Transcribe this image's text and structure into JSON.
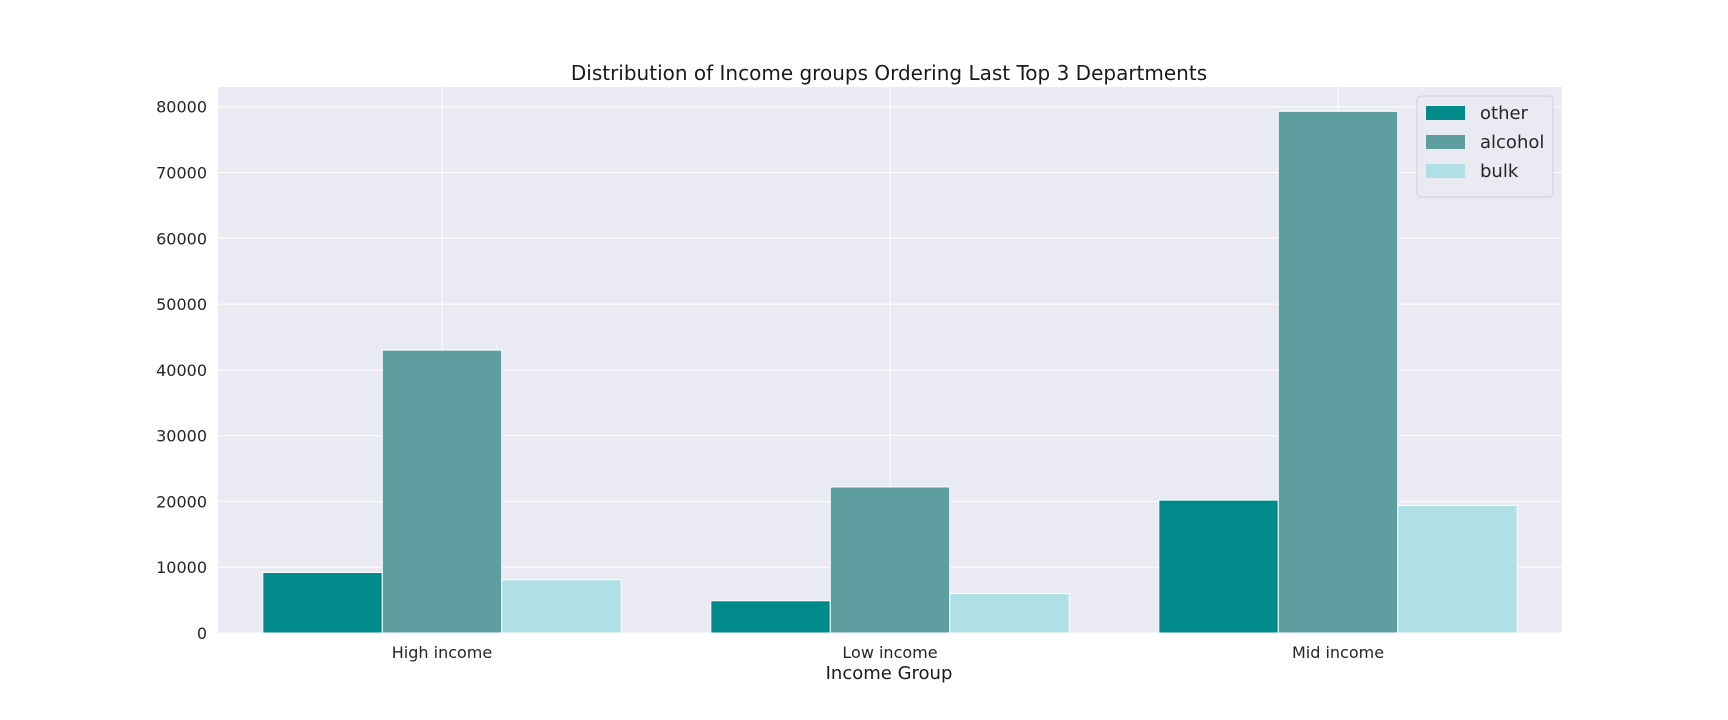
{
  "chart_data": {
    "type": "bar",
    "title": "Distribution of Income groups Ordering Last Top 3 Departments",
    "xlabel": "Income Group",
    "ylabel": "",
    "categories": [
      "High income",
      "Low income",
      "Mid income"
    ],
    "series": [
      {
        "name": "other",
        "values": [
          9200,
          4900,
          20200
        ],
        "color": "#008b8b"
      },
      {
        "name": "alcohol",
        "values": [
          43000,
          22200,
          79300
        ],
        "color": "#5f9ea0"
      },
      {
        "name": "bulk",
        "values": [
          8100,
          6000,
          19400
        ],
        "color": "#b0e0e6"
      }
    ],
    "ylim": [
      0,
      83000
    ],
    "yticks": [
      0,
      10000,
      20000,
      30000,
      40000,
      50000,
      60000,
      70000,
      80000
    ],
    "ytick_labels": [
      "0",
      "10000",
      "20000",
      "30000",
      "40000",
      "50000",
      "60000",
      "70000",
      "80000"
    ],
    "grid": true,
    "legend_position": "top-right",
    "background_color": "#eaeaf2",
    "grid_color": "#ffffff"
  }
}
